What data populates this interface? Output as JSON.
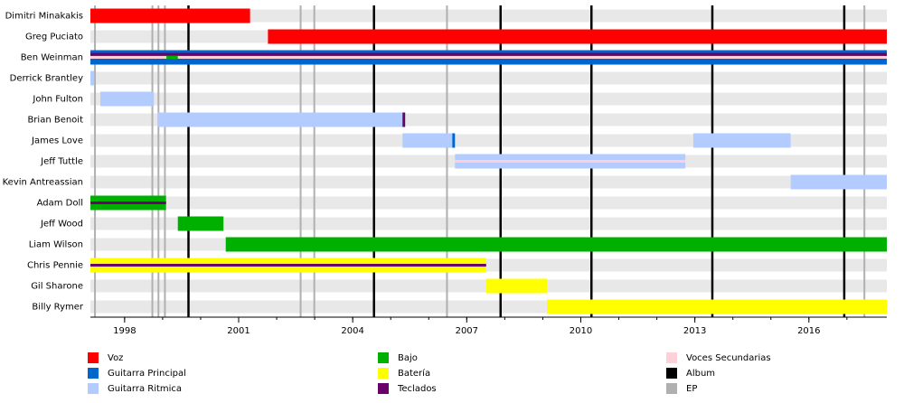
{
  "chart_data": {
    "type": "timeline",
    "xlim": [
      1997.1,
      2018.05
    ],
    "xticks": [
      1998,
      2001,
      2004,
      2007,
      2010,
      2013,
      2016
    ],
    "xminorticks": [
      1998,
      1999,
      2000,
      2001,
      2002,
      2003,
      2004,
      2005,
      2006,
      2007,
      2008,
      2009,
      2010,
      2011,
      2012,
      2013,
      2014,
      2015,
      2016,
      2017
    ],
    "roles": [
      {
        "name": "Voz",
        "color": "#ff0000"
      },
      {
        "name": "Guitarra Principal",
        "color": "#0066cc"
      },
      {
        "name": "Guitarra Ritmica",
        "color": "#b3ccff"
      },
      {
        "name": "Bajo",
        "color": "#00b000"
      },
      {
        "name": "Batería",
        "color": "#ffff00"
      },
      {
        "name": "Teclados",
        "color": "#6a006a"
      },
      {
        "name": "Voces Secundarias",
        "color": "#ffd0d8"
      }
    ],
    "markers": [
      {
        "name": "Album",
        "color": "#000000",
        "values": [
          1999.68,
          2004.56,
          2007.89,
          2010.28,
          2013.46,
          2016.93
        ]
      },
      {
        "name": "EP",
        "color": "#b0b0b0",
        "values": [
          1997.22,
          1998.73,
          1998.89,
          1999.06,
          2002.63,
          2002.99,
          2006.48,
          2017.46
        ]
      }
    ],
    "members": [
      {
        "name": "Dimitri Minakakis",
        "segments": [
          {
            "role": 0,
            "start": 1997.1,
            "end": 2001.3,
            "layer": "main"
          }
        ]
      },
      {
        "name": "Greg Puciato",
        "segments": [
          {
            "role": 0,
            "start": 2001.77,
            "end": 2018.05,
            "layer": "main"
          }
        ]
      },
      {
        "name": "Ben Weinman",
        "segments": [
          {
            "role": 1,
            "start": 1997.1,
            "end": 2018.05,
            "layer": "main"
          },
          {
            "role": 5,
            "start": 1997.1,
            "end": 2018.05,
            "layer": "top"
          },
          {
            "role": 6,
            "start": 1997.1,
            "end": 2018.05,
            "layer": "mid"
          },
          {
            "role": 3,
            "start": 1999.1,
            "end": 1999.4,
            "layer": "mid"
          }
        ]
      },
      {
        "name": "Derrick Brantley",
        "segments": [
          {
            "role": 2,
            "start": 1997.1,
            "end": 1997.2,
            "layer": "main"
          }
        ]
      },
      {
        "name": "John Fulton",
        "segments": [
          {
            "role": 2,
            "start": 1997.36,
            "end": 1998.77,
            "layer": "main"
          }
        ]
      },
      {
        "name": "Brian Benoit",
        "segments": [
          {
            "role": 2,
            "start": 1998.87,
            "end": 2005.31,
            "layer": "main"
          },
          {
            "role": 5,
            "start": 2005.31,
            "end": 2005.38,
            "layer": "main"
          }
        ]
      },
      {
        "name": "James Love",
        "segments": [
          {
            "role": 2,
            "start": 2005.31,
            "end": 2006.62,
            "layer": "main"
          },
          {
            "role": 1,
            "start": 2006.62,
            "end": 2006.69,
            "layer": "main"
          },
          {
            "role": 2,
            "start": 2012.96,
            "end": 2015.52,
            "layer": "main"
          }
        ]
      },
      {
        "name": "Jeff Tuttle",
        "segments": [
          {
            "role": 2,
            "start": 2006.69,
            "end": 2012.75,
            "layer": "main"
          },
          {
            "role": 6,
            "start": 2006.69,
            "end": 2012.75,
            "layer": "mid"
          }
        ]
      },
      {
        "name": "Kevin Antreassian",
        "segments": [
          {
            "role": 2,
            "start": 2015.52,
            "end": 2018.05,
            "layer": "main"
          }
        ]
      },
      {
        "name": "Adam Doll",
        "segments": [
          {
            "role": 3,
            "start": 1997.1,
            "end": 1999.09,
            "layer": "main"
          },
          {
            "role": 5,
            "start": 1997.1,
            "end": 1999.09,
            "layer": "mid"
          }
        ]
      },
      {
        "name": "Jeff Wood",
        "segments": [
          {
            "role": 3,
            "start": 1999.4,
            "end": 2000.6,
            "layer": "main"
          }
        ]
      },
      {
        "name": "Liam Wilson",
        "segments": [
          {
            "role": 3,
            "start": 2000.66,
            "end": 2018.05,
            "layer": "main"
          }
        ]
      },
      {
        "name": "Chris Pennie",
        "segments": [
          {
            "role": 4,
            "start": 1997.1,
            "end": 2007.51,
            "layer": "main"
          },
          {
            "role": 5,
            "start": 1997.1,
            "end": 2007.51,
            "layer": "mid"
          }
        ]
      },
      {
        "name": "Gil Sharone",
        "segments": [
          {
            "role": 4,
            "start": 2007.51,
            "end": 2009.11,
            "layer": "main"
          }
        ]
      },
      {
        "name": "Billy Rymer",
        "segments": [
          {
            "role": 4,
            "start": 2009.11,
            "end": 2018.05,
            "layer": "main"
          }
        ]
      }
    ]
  }
}
